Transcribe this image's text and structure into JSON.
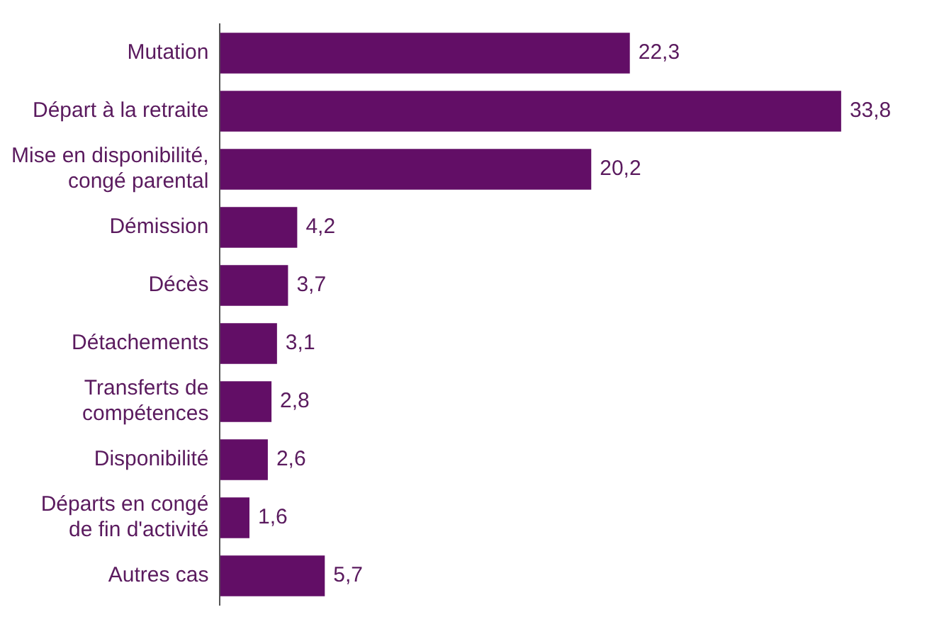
{
  "chart_data": {
    "type": "bar",
    "orientation": "horizontal",
    "categories": [
      "Mutation",
      "Départ à la retraite",
      "Mise en disponibilité,\ncongé parental",
      "Démission",
      "Décès",
      "Détachements",
      "Transferts de\ncompétences",
      "Disponibilité",
      "Départs en congé\nde fin d'activité",
      "Autres cas"
    ],
    "values": [
      22.3,
      33.8,
      20.2,
      4.2,
      3.7,
      3.1,
      2.8,
      2.6,
      1.6,
      5.7
    ],
    "value_labels": [
      "22,3",
      "33,8",
      "20,2",
      "4,2",
      "3,7",
      "3,1",
      "2,8",
      "2,6",
      "1,6",
      "5,7"
    ],
    "color": "#620e66"
  }
}
